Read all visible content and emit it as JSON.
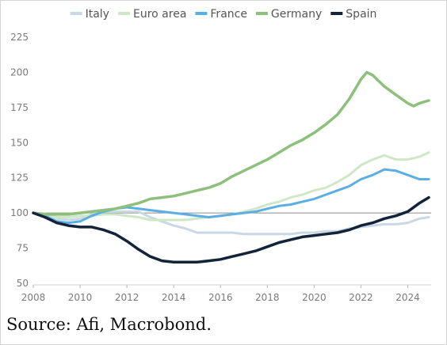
{
  "chart_data": {
    "type": "line",
    "title": "",
    "xlabel": "",
    "ylabel": "",
    "xlim": [
      2008,
      2024.9
    ],
    "ylim": [
      50,
      225
    ],
    "x_ticks": [
      "2008",
      "2010",
      "2012",
      "2014",
      "2016",
      "2018",
      "2020",
      "2022",
      "2024"
    ],
    "y_ticks": [
      "50",
      "75",
      "100",
      "125",
      "150",
      "175",
      "200",
      "225"
    ],
    "reference_line": 100,
    "grid": false,
    "legend_position": "top",
    "series": [
      {
        "name": "Italy",
        "color": "#c9d8e4",
        "width": 3,
        "points": [
          [
            2008,
            100
          ],
          [
            2008.5,
            99.5
          ],
          [
            2009,
            96
          ],
          [
            2009.5,
            95
          ],
          [
            2010,
            96
          ],
          [
            2010.5,
            99
          ],
          [
            2011,
            101
          ],
          [
            2011.5,
            101
          ],
          [
            2012,
            101
          ],
          [
            2012.5,
            101
          ],
          [
            2013,
            97
          ],
          [
            2013.5,
            94
          ],
          [
            2014,
            91
          ],
          [
            2014.5,
            89
          ],
          [
            2015,
            86
          ],
          [
            2015.5,
            86
          ],
          [
            2016,
            86
          ],
          [
            2016.5,
            86
          ],
          [
            2017,
            85
          ],
          [
            2017.5,
            85
          ],
          [
            2018,
            85
          ],
          [
            2018.5,
            85
          ],
          [
            2019,
            85
          ],
          [
            2019.5,
            86
          ],
          [
            2020,
            86
          ],
          [
            2020.5,
            87
          ],
          [
            2021,
            87
          ],
          [
            2021.5,
            89
          ],
          [
            2022,
            90
          ],
          [
            2022.5,
            91
          ],
          [
            2023,
            92
          ],
          [
            2023.5,
            92
          ],
          [
            2024,
            93
          ],
          [
            2024.5,
            96
          ],
          [
            2024.9,
            97
          ]
        ]
      },
      {
        "name": "Euro area",
        "color": "#cfe7c7",
        "width": 3,
        "points": [
          [
            2008,
            100
          ],
          [
            2008.5,
            99
          ],
          [
            2009,
            97
          ],
          [
            2009.5,
            97
          ],
          [
            2010,
            98
          ],
          [
            2010.5,
            98
          ],
          [
            2011,
            99
          ],
          [
            2011.5,
            99
          ],
          [
            2012,
            98
          ],
          [
            2012.5,
            97
          ],
          [
            2013,
            95
          ],
          [
            2013.5,
            95
          ],
          [
            2014,
            95
          ],
          [
            2014.5,
            95
          ],
          [
            2015,
            96
          ],
          [
            2015.5,
            97
          ],
          [
            2016,
            98
          ],
          [
            2016.5,
            99
          ],
          [
            2017,
            101
          ],
          [
            2017.5,
            103
          ],
          [
            2018,
            106
          ],
          [
            2018.5,
            108
          ],
          [
            2019,
            111
          ],
          [
            2019.5,
            113
          ],
          [
            2020,
            116
          ],
          [
            2020.5,
            118
          ],
          [
            2021,
            122
          ],
          [
            2021.5,
            127
          ],
          [
            2022,
            134
          ],
          [
            2022.5,
            138
          ],
          [
            2023,
            141
          ],
          [
            2023.5,
            138
          ],
          [
            2024,
            138
          ],
          [
            2024.5,
            140
          ],
          [
            2024.9,
            143
          ]
        ]
      },
      {
        "name": "France",
        "color": "#5aaee3",
        "width": 3,
        "points": [
          [
            2008,
            100
          ],
          [
            2008.5,
            98
          ],
          [
            2009,
            94
          ],
          [
            2009.5,
            93
          ],
          [
            2010,
            94
          ],
          [
            2010.5,
            98
          ],
          [
            2011,
            101
          ],
          [
            2011.5,
            103
          ],
          [
            2012,
            104
          ],
          [
            2012.5,
            103
          ],
          [
            2013,
            102
          ],
          [
            2013.5,
            101
          ],
          [
            2014,
            100
          ],
          [
            2014.5,
            99
          ],
          [
            2015,
            98
          ],
          [
            2015.5,
            97
          ],
          [
            2016,
            98
          ],
          [
            2016.5,
            99
          ],
          [
            2017,
            100
          ],
          [
            2017.5,
            101
          ],
          [
            2018,
            103
          ],
          [
            2018.5,
            105
          ],
          [
            2019,
            106
          ],
          [
            2019.5,
            108
          ],
          [
            2020,
            110
          ],
          [
            2020.5,
            113
          ],
          [
            2021,
            116
          ],
          [
            2021.5,
            119
          ],
          [
            2022,
            124
          ],
          [
            2022.5,
            127
          ],
          [
            2023,
            131
          ],
          [
            2023.5,
            130
          ],
          [
            2024,
            127
          ],
          [
            2024.5,
            124
          ],
          [
            2024.9,
            124
          ]
        ]
      },
      {
        "name": "Germany",
        "color": "#8dc07a",
        "width": 3.5,
        "points": [
          [
            2008,
            100
          ],
          [
            2008.5,
            99
          ],
          [
            2009,
            99
          ],
          [
            2009.5,
            99
          ],
          [
            2010,
            100
          ],
          [
            2010.5,
            101
          ],
          [
            2011,
            102
          ],
          [
            2011.5,
            103
          ],
          [
            2012,
            105
          ],
          [
            2012.5,
            107
          ],
          [
            2013,
            110
          ],
          [
            2013.5,
            111
          ],
          [
            2014,
            112
          ],
          [
            2014.5,
            114
          ],
          [
            2015,
            116
          ],
          [
            2015.5,
            118
          ],
          [
            2016,
            121
          ],
          [
            2016.5,
            126
          ],
          [
            2017,
            130
          ],
          [
            2017.5,
            134
          ],
          [
            2018,
            138
          ],
          [
            2018.5,
            143
          ],
          [
            2019,
            148
          ],
          [
            2019.5,
            152
          ],
          [
            2020,
            157
          ],
          [
            2020.5,
            163
          ],
          [
            2021,
            170
          ],
          [
            2021.5,
            181
          ],
          [
            2022,
            195
          ],
          [
            2022.25,
            200
          ],
          [
            2022.5,
            198
          ],
          [
            2023,
            190
          ],
          [
            2023.5,
            184
          ],
          [
            2024,
            178
          ],
          [
            2024.25,
            176
          ],
          [
            2024.5,
            178
          ],
          [
            2024.9,
            180
          ]
        ]
      },
      {
        "name": "Spain",
        "color": "#13233a",
        "width": 3.5,
        "points": [
          [
            2008,
            100
          ],
          [
            2008.5,
            97
          ],
          [
            2009,
            93
          ],
          [
            2009.5,
            91
          ],
          [
            2010,
            90
          ],
          [
            2010.5,
            90
          ],
          [
            2011,
            88
          ],
          [
            2011.5,
            85
          ],
          [
            2012,
            80
          ],
          [
            2012.5,
            74
          ],
          [
            2013,
            69
          ],
          [
            2013.5,
            66
          ],
          [
            2014,
            65
          ],
          [
            2014.5,
            65
          ],
          [
            2015,
            65
          ],
          [
            2015.5,
            66
          ],
          [
            2016,
            67
          ],
          [
            2016.5,
            69
          ],
          [
            2017,
            71
          ],
          [
            2017.5,
            73
          ],
          [
            2018,
            76
          ],
          [
            2018.5,
            79
          ],
          [
            2019,
            81
          ],
          [
            2019.5,
            83
          ],
          [
            2020,
            84
          ],
          [
            2020.5,
            85
          ],
          [
            2021,
            86
          ],
          [
            2021.5,
            88
          ],
          [
            2022,
            91
          ],
          [
            2022.5,
            93
          ],
          [
            2023,
            96
          ],
          [
            2023.5,
            98
          ],
          [
            2024,
            101
          ],
          [
            2024.5,
            107
          ],
          [
            2024.9,
            111
          ]
        ]
      }
    ]
  },
  "source": "Source: Afi, Macrobond."
}
